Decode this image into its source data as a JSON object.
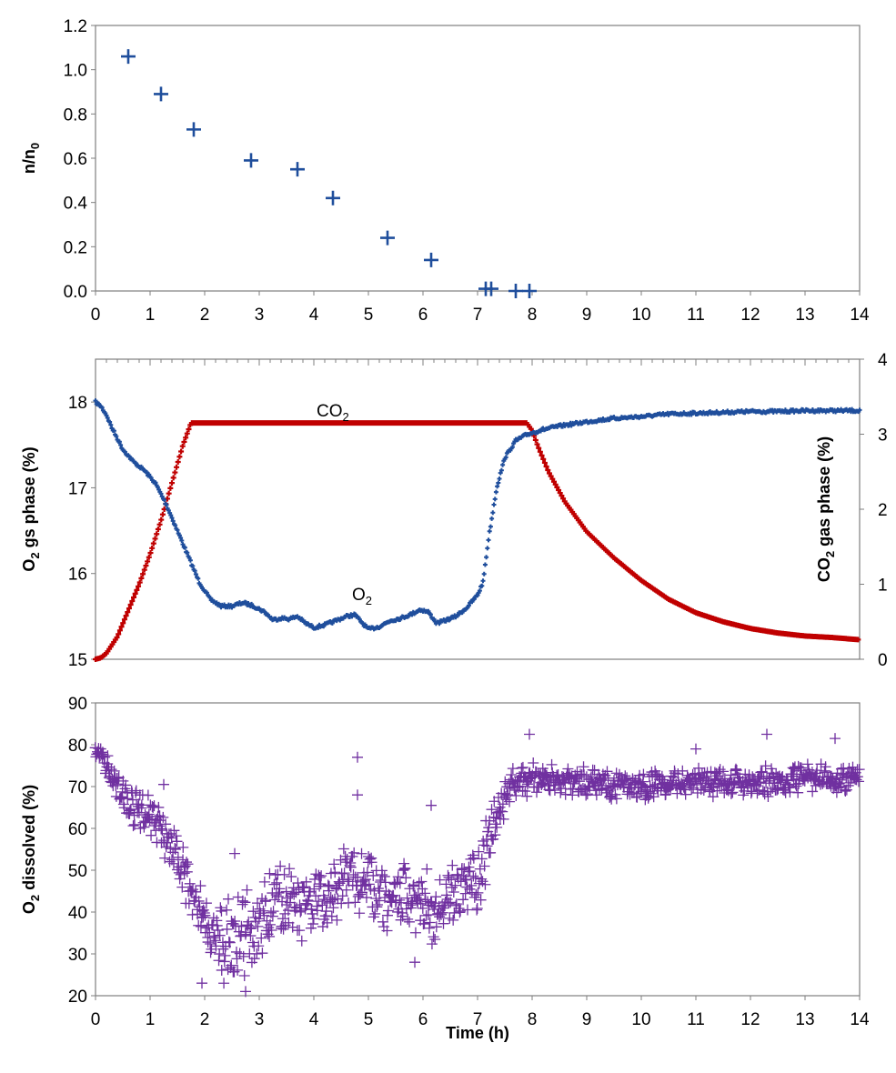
{
  "chart_data": [
    {
      "type": "scatter",
      "ylabel": "n/n0",
      "ylabel_main": "n/n",
      "ylabel_sub": "0",
      "xlim": [
        0,
        14
      ],
      "ylim": [
        0,
        1.2
      ],
      "xticks": [
        "0",
        "1",
        "2",
        "3",
        "4",
        "5",
        "6",
        "7",
        "8",
        "9",
        "10",
        "11",
        "12",
        "13",
        "14"
      ],
      "yticks": [
        "0.0",
        "0.2",
        "0.4",
        "0.6",
        "0.8",
        "1.0",
        "1.2"
      ],
      "marker": "plus",
      "color": "#1f4e9c",
      "series": [
        {
          "x": [
            0.6,
            1.2,
            1.8,
            2.85,
            3.7,
            4.35,
            5.35,
            6.15,
            7.15,
            7.25,
            7.7,
            7.95
          ],
          "y": [
            1.06,
            0.89,
            0.73,
            0.59,
            0.55,
            0.42,
            0.24,
            0.14,
            0.01,
            0.01,
            0.0,
            0.0
          ]
        }
      ]
    },
    {
      "type": "line",
      "ylabel": "O2 gs phase (%)",
      "ylabel_main": "O",
      "ylabel_sub": "2",
      "ylabel_rest": " gs phase (%)",
      "y2label": "CO2 gas phase (%)",
      "y2label_main": "CO",
      "y2label_sub": "2",
      "y2label_rest": " gas phase (%)",
      "xlim": [
        0,
        14
      ],
      "ylim": [
        15,
        18.5
      ],
      "y2lim": [
        0,
        4
      ],
      "yticks": [
        "15",
        "16",
        "17",
        "18"
      ],
      "y2ticks": [
        "0",
        "1",
        "2",
        "3",
        "4"
      ],
      "annotations": [
        {
          "main": "CO",
          "sub": "2",
          "x": 4.2,
          "y": 17.82
        },
        {
          "main": "O",
          "sub": "2",
          "x": 4.75,
          "y": 15.75
        }
      ],
      "series": [
        {
          "name": "O2",
          "color": "#1f4e9c",
          "axis": "left",
          "x": [
            0,
            0.1,
            0.2,
            0.3,
            0.5,
            0.7,
            0.9,
            1.1,
            1.3,
            1.5,
            1.7,
            1.9,
            2.1,
            2.3,
            2.5,
            2.7,
            2.9,
            3.1,
            3.25,
            3.4,
            3.55,
            3.7,
            3.85,
            4.0,
            4.2,
            4.4,
            4.6,
            4.75,
            4.85,
            5.0,
            5.2,
            5.4,
            5.6,
            5.8,
            5.95,
            6.1,
            6.25,
            6.4,
            6.6,
            6.8,
            7.0,
            7.1,
            7.2,
            7.35,
            7.5,
            7.7,
            7.9,
            8.2,
            8.5,
            9.0,
            9.5,
            10.0,
            10.5,
            11.0,
            11.5,
            12.0,
            12.5,
            13.0,
            13.5,
            14.0
          ],
          "y": [
            18.0,
            17.95,
            17.85,
            17.7,
            17.45,
            17.3,
            17.2,
            17.05,
            16.8,
            16.5,
            16.2,
            15.9,
            15.7,
            15.62,
            15.62,
            15.66,
            15.62,
            15.55,
            15.46,
            15.48,
            15.47,
            15.5,
            15.42,
            15.37,
            15.4,
            15.45,
            15.5,
            15.52,
            15.45,
            15.35,
            15.38,
            15.45,
            15.48,
            15.53,
            15.58,
            15.55,
            15.42,
            15.45,
            15.5,
            15.6,
            15.75,
            15.9,
            16.4,
            17.0,
            17.35,
            17.55,
            17.62,
            17.68,
            17.72,
            17.77,
            17.81,
            17.83,
            17.86,
            17.87,
            17.88,
            17.89,
            17.89,
            17.9,
            17.9,
            17.9
          ]
        },
        {
          "name": "CO2",
          "color": "#c00000",
          "axis": "right",
          "x": [
            0,
            0.1,
            0.2,
            0.4,
            0.6,
            0.8,
            1.0,
            1.2,
            1.4,
            1.6,
            1.75,
            2.0,
            3.0,
            4.0,
            5.0,
            6.0,
            7.0,
            7.9,
            8.0,
            8.1,
            8.3,
            8.6,
            9.0,
            9.5,
            10.0,
            10.5,
            11.0,
            11.5,
            12.0,
            12.5,
            13.0,
            13.5,
            14.0
          ],
          "y": [
            0.0,
            0.02,
            0.08,
            0.3,
            0.65,
            1.0,
            1.4,
            1.85,
            2.35,
            2.85,
            3.15,
            3.15,
            3.15,
            3.15,
            3.15,
            3.15,
            3.15,
            3.15,
            3.05,
            2.85,
            2.5,
            2.1,
            1.7,
            1.35,
            1.05,
            0.8,
            0.62,
            0.5,
            0.41,
            0.35,
            0.31,
            0.29,
            0.26
          ]
        }
      ]
    },
    {
      "type": "scatter",
      "ylabel": "O2 dissolved (%)",
      "ylabel_main": "O",
      "ylabel_sub": "2",
      "ylabel_rest": " dissolved (%)",
      "xlabel": "Time (h)",
      "xlim": [
        0,
        14
      ],
      "ylim": [
        20,
        90
      ],
      "xticks": [
        "0",
        "1",
        "2",
        "3",
        "4",
        "5",
        "6",
        "7",
        "8",
        "9",
        "10",
        "11",
        "12",
        "13",
        "14"
      ],
      "yticks": [
        "20",
        "30",
        "40",
        "50",
        "60",
        "70",
        "80",
        "90"
      ],
      "marker": "plus",
      "color": "#7030a0",
      "trend": {
        "x": [
          0,
          0.3,
          0.6,
          1.0,
          1.4,
          1.8,
          2.2,
          2.6,
          3.0,
          3.4,
          3.8,
          4.2,
          4.6,
          5.0,
          5.4,
          5.8,
          6.2,
          6.6,
          7.0,
          7.3,
          7.6,
          8.0,
          9.0,
          10.0,
          11.0,
          12.0,
          13.0,
          14.0
        ],
        "y": [
          79,
          73,
          66,
          63,
          56,
          43,
          32,
          33,
          38,
          43,
          40,
          42,
          49,
          47,
          43,
          44,
          40,
          43,
          48,
          63,
          70,
          72,
          71,
          70,
          71,
          71,
          72,
          72
        ],
        "spread": [
          2,
          4,
          5,
          6,
          7,
          8,
          10,
          11,
          10,
          10,
          10,
          9,
          10,
          10,
          9,
          9,
          10,
          10,
          10,
          8,
          5,
          4,
          4,
          4,
          4,
          4,
          4,
          4
        ]
      },
      "outliers": [
        {
          "x": 4.8,
          "y": 77
        },
        {
          "x": 4.8,
          "y": 68
        },
        {
          "x": 7.95,
          "y": 82.5
        },
        {
          "x": 12.3,
          "y": 82.5
        },
        {
          "x": 13.55,
          "y": 81.5
        },
        {
          "x": 2.75,
          "y": 21
        },
        {
          "x": 1.95,
          "y": 23
        },
        {
          "x": 2.55,
          "y": 54
        },
        {
          "x": 6.15,
          "y": 65.5
        },
        {
          "x": 5.85,
          "y": 28
        },
        {
          "x": 1.25,
          "y": 70.5
        },
        {
          "x": 11.0,
          "y": 79
        }
      ]
    }
  ]
}
